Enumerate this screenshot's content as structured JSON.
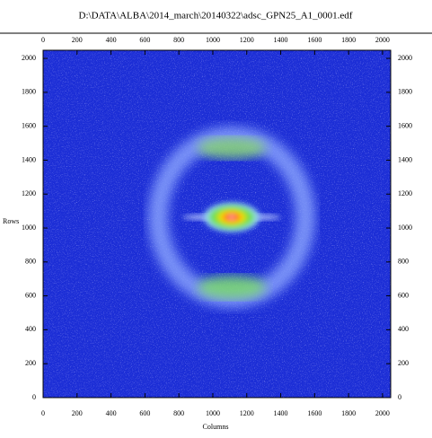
{
  "chart_data": {
    "type": "image",
    "title": "D:\\DATA\\ALBA\\2014_march\\20140322\\adsc_GPN25_A1_0001.edf",
    "x_label": "Columns",
    "y_label": "Rows",
    "xlim": [
      0,
      2048
    ],
    "ylim": [
      0,
      2048
    ],
    "xticks": [
      0,
      200,
      400,
      600,
      800,
      1000,
      1200,
      1400,
      1600,
      1800,
      2000
    ],
    "yticks": [
      0,
      200,
      400,
      600,
      800,
      1000,
      1200,
      1400,
      1600,
      1800,
      2000
    ]
  }
}
